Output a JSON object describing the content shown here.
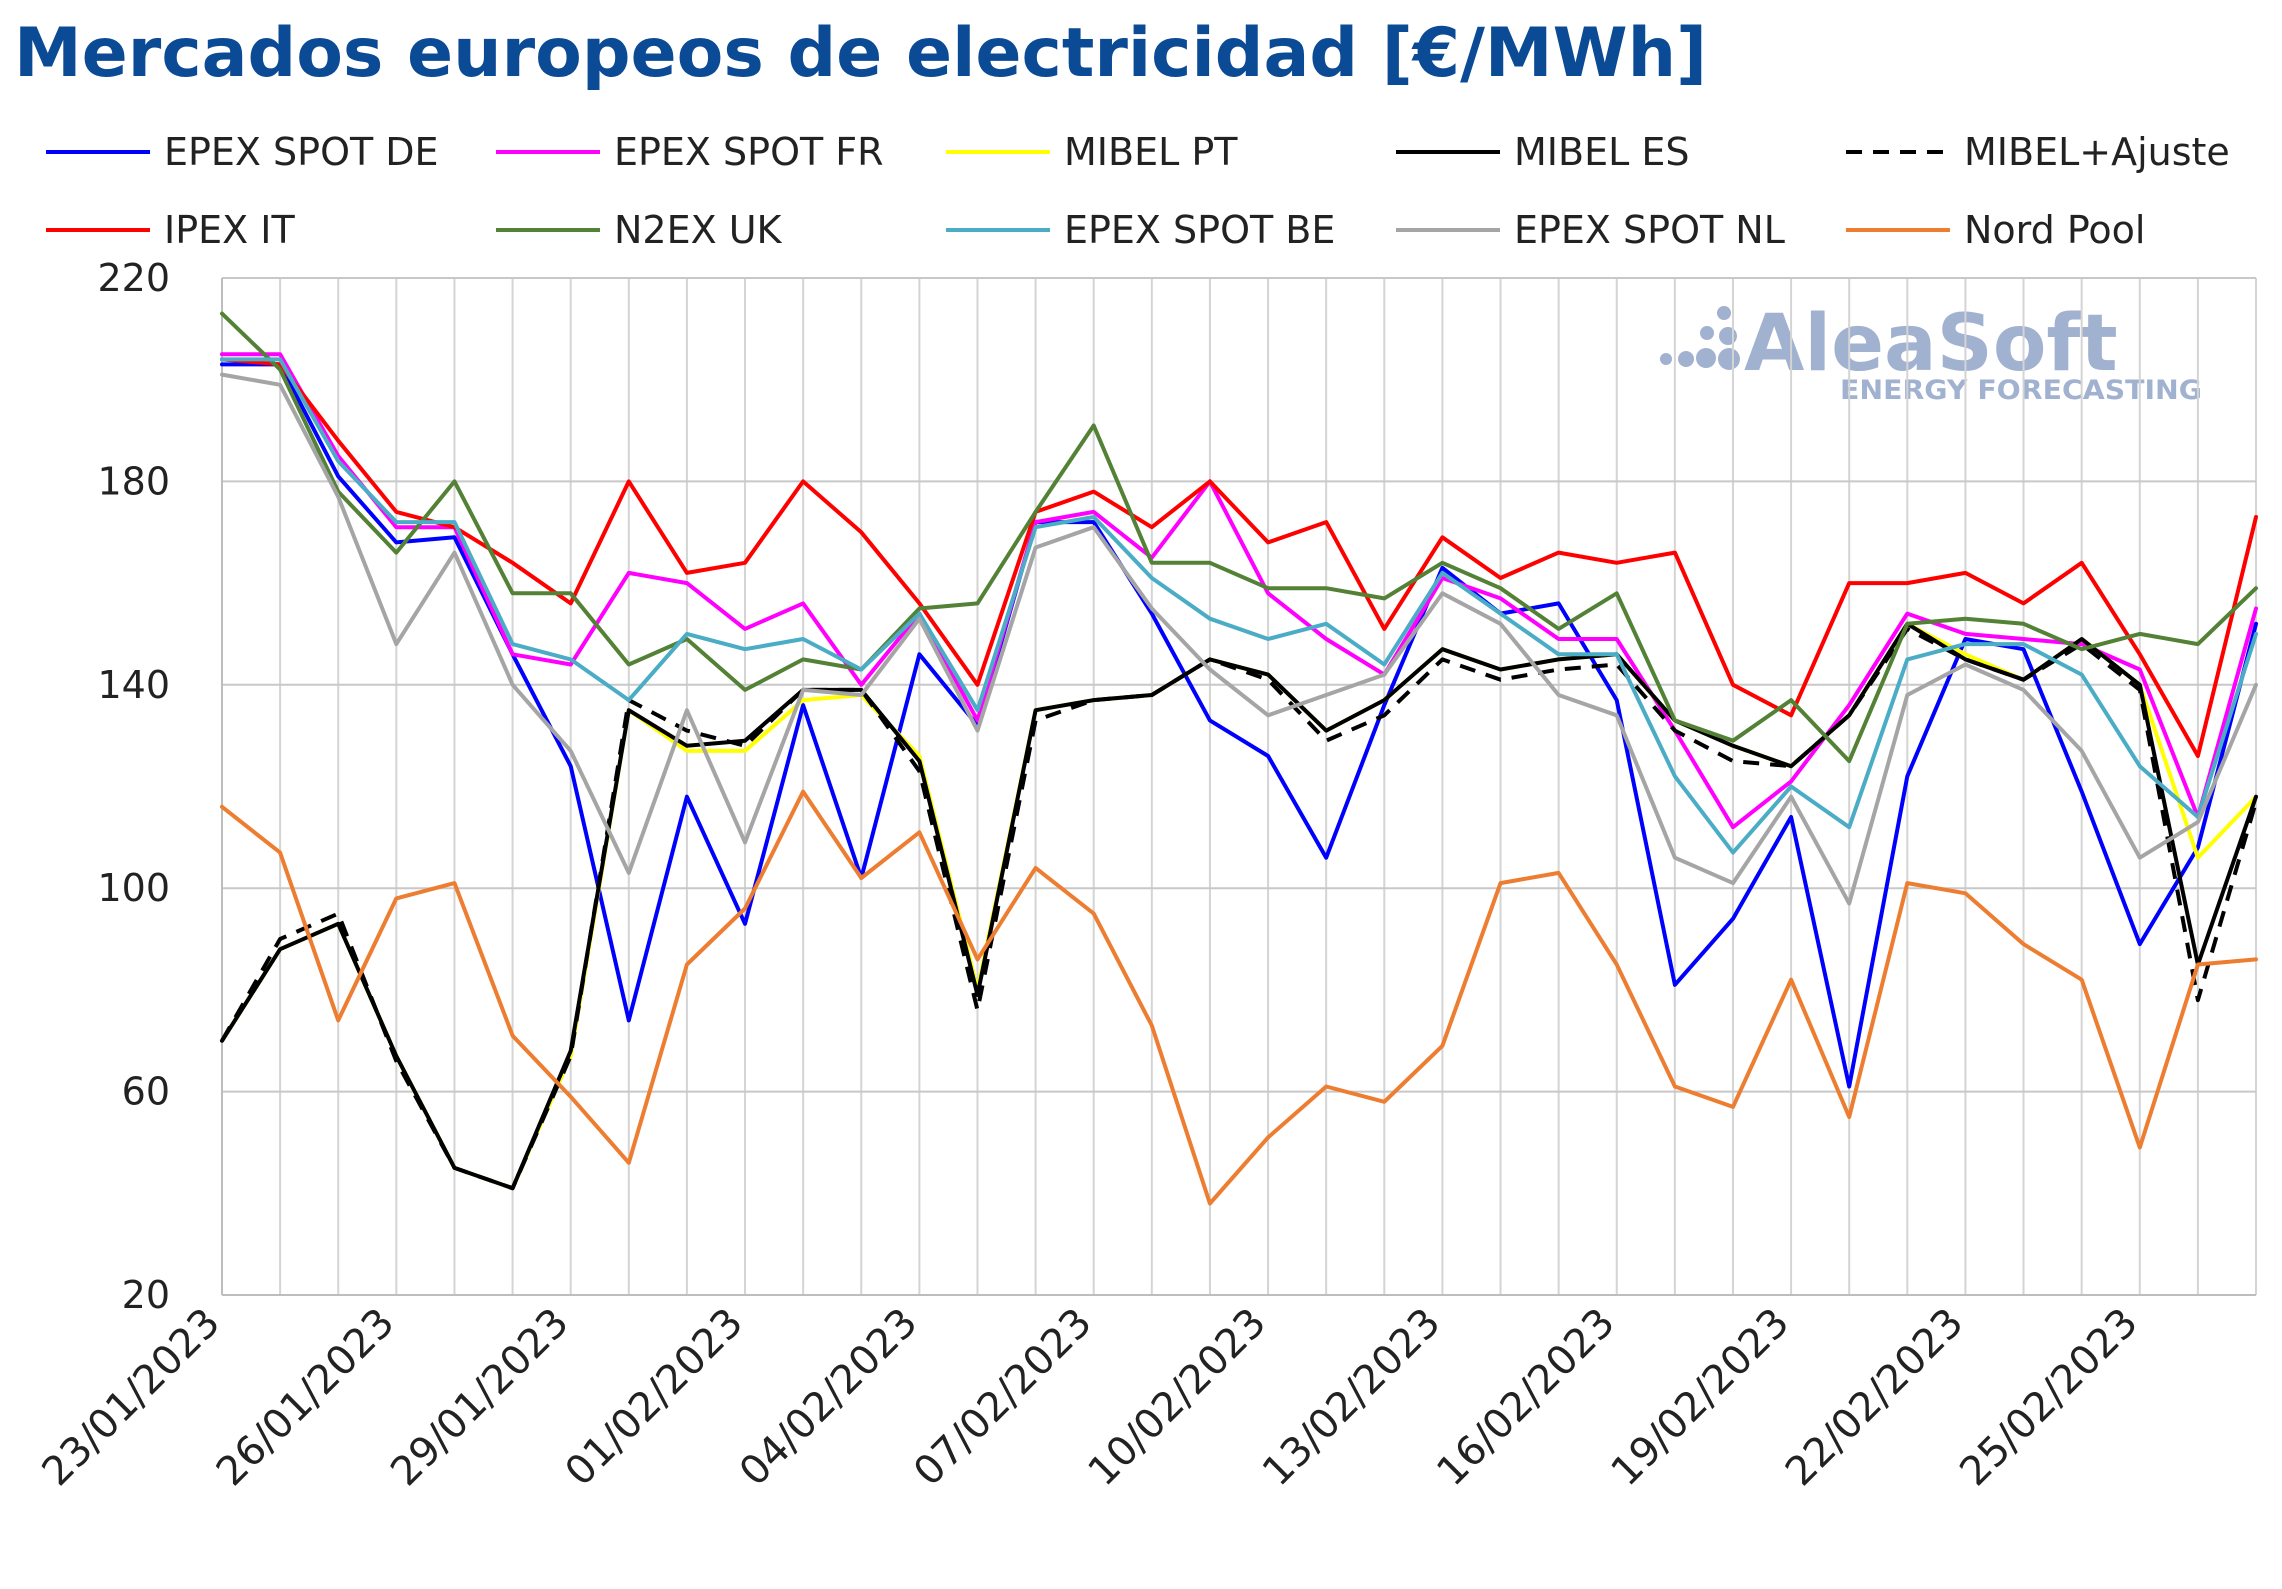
{
  "chart_data": {
    "type": "line",
    "title": "Mercados europeos de electricidad [€/MWh]",
    "xlabel": "",
    "ylabel": "",
    "ylim": [
      20,
      220
    ],
    "yticks": [
      20,
      60,
      100,
      140,
      180,
      220
    ],
    "grid": true,
    "legend_position": "top",
    "x": [
      "23/01/2023",
      "24/01/2023",
      "25/01/2023",
      "26/01/2023",
      "27/01/2023",
      "28/01/2023",
      "29/01/2023",
      "30/01/2023",
      "31/01/2023",
      "01/02/2023",
      "02/02/2023",
      "03/02/2023",
      "04/02/2023",
      "05/02/2023",
      "06/02/2023",
      "07/02/2023",
      "08/02/2023",
      "09/02/2023",
      "10/02/2023",
      "11/02/2023",
      "12/02/2023",
      "13/02/2023",
      "14/02/2023",
      "15/02/2023",
      "16/02/2023",
      "17/02/2023",
      "18/02/2023",
      "19/02/2023",
      "20/02/2023",
      "21/02/2023",
      "22/02/2023",
      "23/02/2023",
      "24/02/2023",
      "25/02/2023",
      "26/02/2023",
      "27/02/2023"
    ],
    "x_tick_labels": [
      "23/01/2023",
      "26/01/2023",
      "29/01/2023",
      "01/02/2023",
      "04/02/2023",
      "07/02/2023",
      "10/02/2023",
      "13/02/2023",
      "16/02/2023",
      "19/02/2023",
      "22/02/2023",
      "25/02/2023"
    ],
    "series": [
      {
        "name": "EPEX SPOT DE",
        "color": "#0000ff",
        "dashed": false,
        "values": [
          203,
          203,
          181,
          168,
          169,
          146,
          124,
          74,
          118,
          93,
          136,
          102,
          146,
          132,
          172,
          172,
          154,
          133,
          126,
          106,
          136,
          163,
          154,
          156,
          137,
          81,
          94,
          114,
          61,
          122,
          149,
          147,
          119,
          89,
          108,
          152
        ]
      },
      {
        "name": "EPEX SPOT FR",
        "color": "#ff00ff",
        "dashed": false,
        "values": [
          205,
          205,
          185,
          171,
          171,
          146,
          144,
          162,
          160,
          151,
          156,
          140,
          154,
          133,
          172,
          174,
          165,
          180,
          158,
          149,
          142,
          161,
          157,
          149,
          149,
          131,
          112,
          121,
          136,
          154,
          150,
          149,
          148,
          143,
          114,
          155
        ]
      },
      {
        "name": "MIBEL PT",
        "color": "#ffff00",
        "dashed": false,
        "values": [
          70,
          88,
          93,
          67,
          45,
          41,
          67,
          135,
          127,
          127,
          137,
          138,
          126,
          80,
          135,
          137,
          138,
          145,
          142,
          131,
          137,
          147,
          143,
          145,
          146,
          133,
          128,
          124,
          134,
          152,
          146,
          141,
          149,
          140,
          106,
          118
        ]
      },
      {
        "name": "MIBEL ES",
        "color": "#000000",
        "dashed": false,
        "values": [
          70,
          88,
          93,
          67,
          45,
          41,
          68,
          135,
          128,
          129,
          139,
          139,
          125,
          79,
          135,
          137,
          138,
          145,
          142,
          131,
          137,
          147,
          143,
          145,
          146,
          133,
          128,
          124,
          134,
          152,
          145,
          141,
          149,
          140,
          85,
          118
        ]
      },
      {
        "name": "MIBEL+Ajuste",
        "color": "#000000",
        "dashed": true,
        "values": [
          70,
          90,
          95,
          66,
          45,
          41,
          67,
          137,
          131,
          128,
          139,
          139,
          123,
          76,
          133,
          137,
          138,
          145,
          141,
          129,
          134,
          145,
          141,
          143,
          144,
          131,
          125,
          124,
          134,
          151,
          145,
          141,
          148,
          139,
          78,
          117
        ]
      },
      {
        "name": "IPEX IT",
        "color": "#ff0000",
        "dashed": false,
        "values": [
          204,
          203,
          188,
          174,
          171,
          164,
          156,
          180,
          162,
          164,
          180,
          170,
          156,
          140,
          174,
          178,
          171,
          180,
          168,
          172,
          151,
          169,
          161,
          166,
          164,
          166,
          140,
          134,
          160,
          160,
          162,
          156,
          164,
          146,
          126,
          173
        ]
      },
      {
        "name": "N2EX UK",
        "color": "#538135",
        "dashed": false,
        "values": [
          213,
          202,
          178,
          166,
          180,
          158,
          158,
          144,
          149,
          139,
          145,
          143,
          155,
          156,
          174,
          191,
          164,
          164,
          159,
          159,
          157,
          164,
          159,
          151,
          158,
          133,
          129,
          137,
          125,
          152,
          153,
          152,
          147,
          150,
          148,
          159
        ]
      },
      {
        "name": "EPEX SPOT BE",
        "color": "#4bacc6",
        "dashed": false,
        "values": [
          204,
          204,
          184,
          172,
          172,
          148,
          145,
          137,
          150,
          147,
          149,
          143,
          154,
          135,
          171,
          173,
          161,
          153,
          149,
          152,
          144,
          162,
          154,
          146,
          146,
          122,
          107,
          120,
          112,
          145,
          148,
          148,
          142,
          124,
          114,
          150
        ]
      },
      {
        "name": "EPEX SPOT NL",
        "color": "#a5a5a5",
        "dashed": false,
        "values": [
          201,
          199,
          177,
          148,
          166,
          140,
          127,
          103,
          135,
          109,
          139,
          138,
          153,
          131,
          167,
          171,
          155,
          143,
          134,
          138,
          142,
          158,
          152,
          138,
          134,
          106,
          101,
          118,
          97,
          138,
          144,
          139,
          127,
          106,
          113,
          140
        ]
      },
      {
        "name": "Nord Pool",
        "color": "#ed7d31",
        "dashed": false,
        "values": [
          116,
          107,
          74,
          98,
          101,
          71,
          59,
          46,
          85,
          96,
          119,
          102,
          111,
          86,
          104,
          95,
          73,
          38,
          51,
          61,
          58,
          69,
          101,
          103,
          85,
          61,
          57,
          82,
          55,
          101,
          99,
          89,
          82,
          49,
          85,
          86
        ]
      }
    ]
  },
  "brand": {
    "name": "AleaSoft",
    "tagline": "ENERGY FORECASTING"
  }
}
